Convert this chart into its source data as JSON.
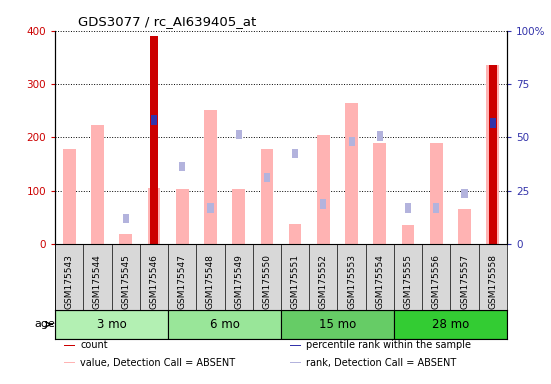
{
  "title": "GDS3077 / rc_AI639405_at",
  "samples": [
    "GSM175543",
    "GSM175544",
    "GSM175545",
    "GSM175546",
    "GSM175547",
    "GSM175548",
    "GSM175549",
    "GSM175550",
    "GSM175551",
    "GSM175552",
    "GSM175553",
    "GSM175554",
    "GSM175555",
    "GSM175556",
    "GSM175557",
    "GSM175558"
  ],
  "age_groups": [
    {
      "label": "3 mo",
      "start": 0,
      "end": 4
    },
    {
      "label": "6 mo",
      "start": 4,
      "end": 8
    },
    {
      "label": "15 mo",
      "start": 8,
      "end": 12
    },
    {
      "label": "28 mo",
      "start": 12,
      "end": 16
    }
  ],
  "age_colors": [
    "#b3f0b3",
    "#99e699",
    "#66cc66",
    "#33cc33"
  ],
  "value_bars": [
    178,
    224,
    18,
    105,
    103,
    252,
    103,
    178,
    38,
    204,
    264,
    190,
    35,
    190,
    65,
    335
  ],
  "rank_vals": [
    null,
    null,
    48,
    null,
    145,
    68,
    205,
    125,
    170,
    75,
    192,
    202,
    67,
    67,
    95,
    227
  ],
  "count_vals": [
    null,
    null,
    null,
    390,
    null,
    null,
    null,
    null,
    null,
    null,
    null,
    null,
    null,
    null,
    null,
    335
  ],
  "pct_vals": [
    null,
    null,
    null,
    233,
    null,
    null,
    null,
    null,
    null,
    null,
    null,
    null,
    null,
    null,
    null,
    227
  ],
  "ylim_left": [
    0,
    400
  ],
  "ylim_right": [
    0,
    100
  ],
  "yticks_left": [
    0,
    100,
    200,
    300,
    400
  ],
  "yticks_right": [
    0,
    25,
    50,
    75,
    100
  ],
  "value_color": "#ffb3b3",
  "rank_color": "#b3b3dd",
  "count_color": "#cc0000",
  "pct_color": "#3333aa",
  "legend_items": [
    {
      "color": "#cc0000",
      "label": "count"
    },
    {
      "color": "#3333aa",
      "label": "percentile rank within the sample"
    },
    {
      "color": "#ffb3b3",
      "label": "value, Detection Call = ABSENT"
    },
    {
      "color": "#b3b3dd",
      "label": "rank, Detection Call = ABSENT"
    }
  ]
}
